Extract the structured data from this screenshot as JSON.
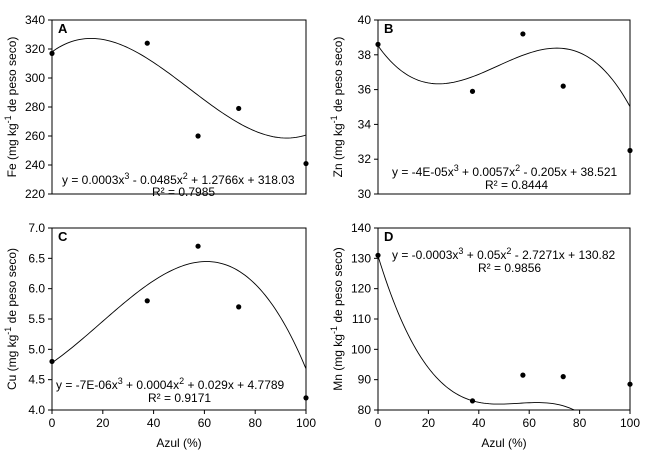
{
  "chart_data": [
    {
      "type": "scatter",
      "panel": "A",
      "xlabel": "",
      "ylabel_main": "Fe (mg kg",
      "ylabel_sup": "-1",
      "ylabel_tail": " de peso seco)",
      "xlim": [
        0,
        100
      ],
      "ylim": [
        220,
        340
      ],
      "xticks": [],
      "yticks": [
        220,
        240,
        260,
        280,
        300,
        320,
        340
      ],
      "x": [
        0,
        37.5,
        57.5,
        73.5,
        100
      ],
      "y": [
        317,
        324,
        260,
        279,
        241
      ],
      "fit": [
        318.03,
        1.2766,
        -0.0485,
        0.0003
      ],
      "eq_parts": [
        "y = 0.0003x",
        "3",
        " - 0.0485x",
        "2",
        " + 1.2766x + 318.03"
      ],
      "r2": "R² = 0.7985"
    },
    {
      "type": "scatter",
      "panel": "B",
      "xlabel": "",
      "ylabel_main": "Zn (mg kg",
      "ylabel_sup": "-1",
      "ylabel_tail": " de peso seco)",
      "xlim": [
        0,
        100
      ],
      "ylim": [
        30,
        40
      ],
      "xticks": [],
      "yticks": [
        30,
        32,
        34,
        36,
        38,
        40
      ],
      "x": [
        0,
        37.5,
        57.5,
        73.5,
        100
      ],
      "y": [
        38.6,
        35.9,
        39.2,
        36.2,
        32.5
      ],
      "fit": [
        38.521,
        -0.205,
        0.0057,
        -4e-05
      ],
      "eq_parts": [
        "y = -4E-05x",
        "3",
        " + 0.0057x",
        "2",
        " - 0.205x + 38.521"
      ],
      "r2": "R² = 0.8444"
    },
    {
      "type": "scatter",
      "panel": "C",
      "xlabel": "Azul (%)",
      "ylabel_main": "Cu (mg kg",
      "ylabel_sup": "-1",
      "ylabel_tail": " de peso seco)",
      "xlim": [
        0,
        100
      ],
      "ylim": [
        4.0,
        7.0
      ],
      "xticks": [
        0,
        20,
        40,
        60,
        80,
        100
      ],
      "yticks": [
        "4.0",
        "4.5",
        "5.0",
        "5.5",
        "6.0",
        "6.5",
        "7.0"
      ],
      "x": [
        0,
        37.5,
        57.5,
        73.5,
        100
      ],
      "y": [
        4.8,
        5.8,
        6.7,
        5.7,
        4.2
      ],
      "fit": [
        4.7789,
        0.029,
        0.0004,
        -7e-06
      ],
      "eq_parts": [
        "y = -7E-06x",
        "3",
        " + 0.0004x",
        "2",
        " + 0.029x + 4.7789"
      ],
      "r2": "R² = 0.9171"
    },
    {
      "type": "scatter",
      "panel": "D",
      "xlabel": "Azul (%)",
      "ylabel_main": "Mn (mg kg",
      "ylabel_sup": "-1",
      "ylabel_tail": " de peso seco)",
      "xlim": [
        0,
        100
      ],
      "ylim": [
        80,
        140
      ],
      "xticks": [
        0,
        20,
        40,
        60,
        80,
        100
      ],
      "yticks": [
        80,
        90,
        100,
        110,
        120,
        130,
        140
      ],
      "x": [
        0,
        37.5,
        57.5,
        73.5,
        100
      ],
      "y": [
        131,
        83,
        91.5,
        91,
        88.5
      ],
      "fit": [
        130.82,
        -2.7271,
        0.05,
        -0.0003
      ],
      "eq_parts": [
        "y = -0.0003x",
        "3",
        " + 0.05x",
        "2",
        " - 2.7271x + 130.82"
      ],
      "r2": "R² = 0.9856"
    }
  ]
}
